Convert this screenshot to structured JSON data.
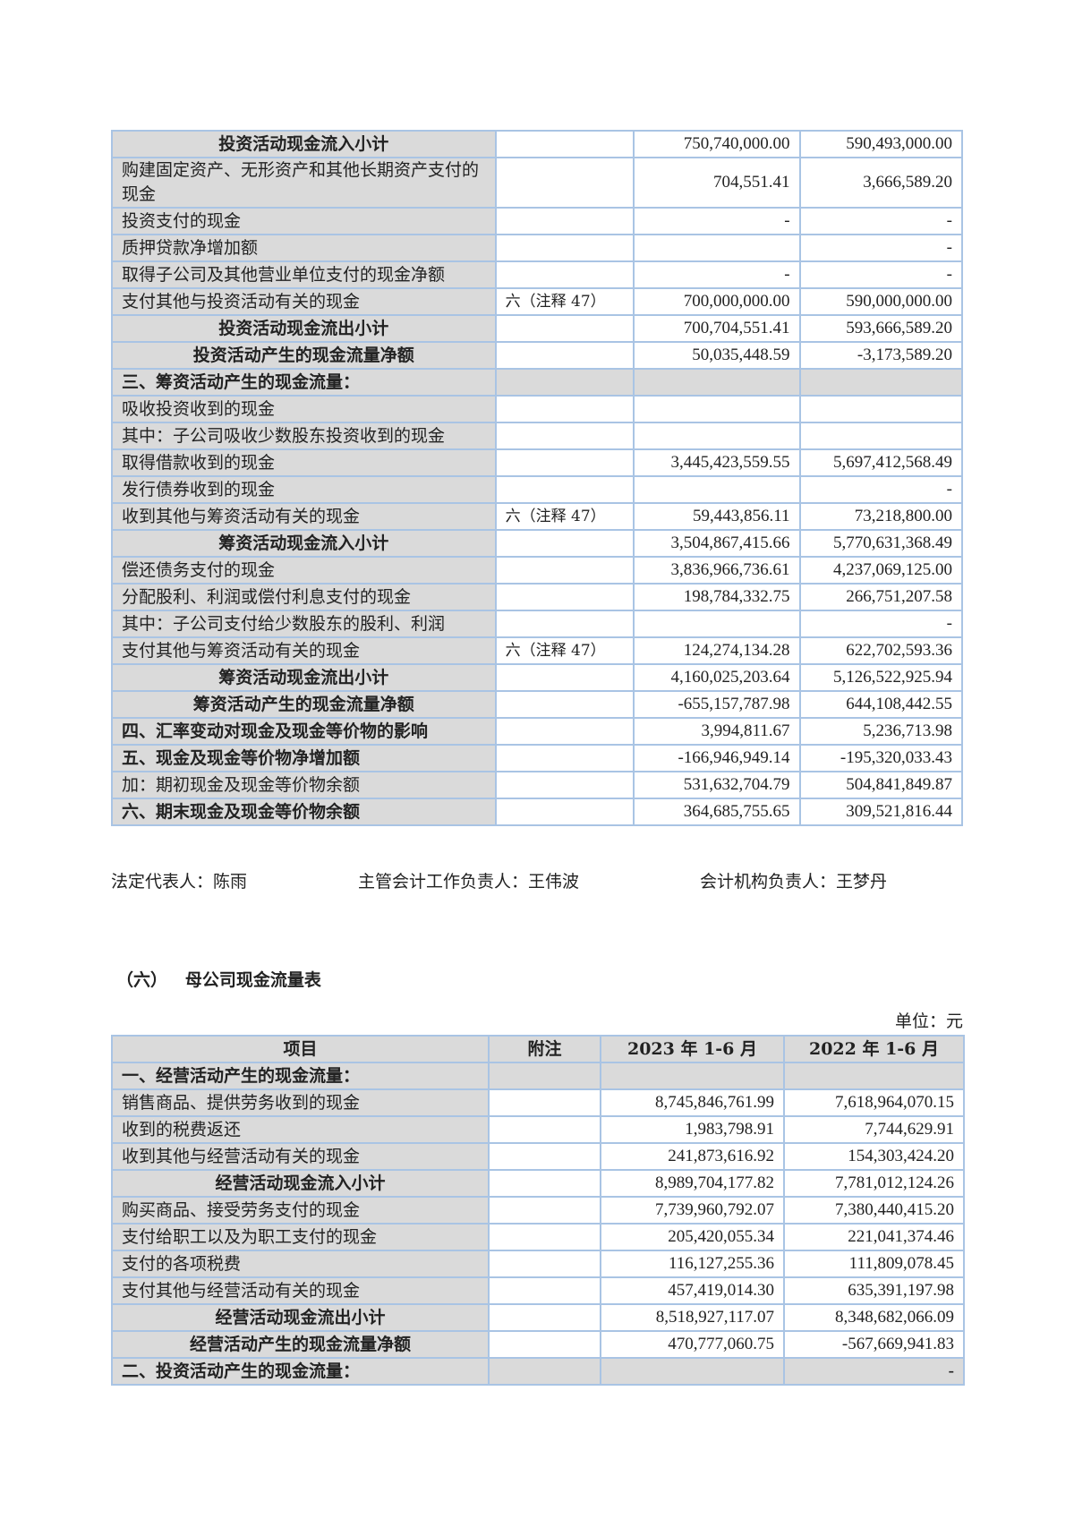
{
  "table1": {
    "rows": [
      {
        "label": "投资活动现金流入小计",
        "note": "",
        "v1": "750,740,000.00",
        "v2": "590,493,000.00",
        "type": "subtotal"
      },
      {
        "label": "购建固定资产、无形资产和其他长期资产支付的现金",
        "note": "",
        "v1": "704,551.41",
        "v2": "3,666,589.20",
        "type": "normal"
      },
      {
        "label": "投资支付的现金",
        "note": "",
        "v1": "-",
        "v2": "-",
        "type": "normal"
      },
      {
        "label": "质押贷款净增加额",
        "note": "",
        "v1": "",
        "v2": "-",
        "type": "normal"
      },
      {
        "label": "取得子公司及其他营业单位支付的现金净额",
        "note": "",
        "v1": "-",
        "v2": "-",
        "type": "normal"
      },
      {
        "label": "支付其他与投资活动有关的现金",
        "note": "六（注释 47）",
        "v1": "700,000,000.00",
        "v2": "590,000,000.00",
        "type": "normal"
      },
      {
        "label": "投资活动现金流出小计",
        "note": "",
        "v1": "700,704,551.41",
        "v2": "593,666,589.20",
        "type": "subtotal"
      },
      {
        "label": "投资活动产生的现金流量净额",
        "note": "",
        "v1": "50,035,448.59",
        "v2": "-3,173,589.20",
        "type": "subtotal"
      },
      {
        "label": "三、筹资活动产生的现金流量：",
        "note": "",
        "v1": "",
        "v2": "",
        "type": "section"
      },
      {
        "label": "吸收投资收到的现金",
        "note": "",
        "v1": "",
        "v2": "",
        "type": "normal"
      },
      {
        "label": "其中：子公司吸收少数股东投资收到的现金",
        "note": "",
        "v1": "",
        "v2": "",
        "type": "normal"
      },
      {
        "label": "取得借款收到的现金",
        "note": "",
        "v1": "3,445,423,559.55",
        "v2": "5,697,412,568.49",
        "type": "normal"
      },
      {
        "label": "发行债券收到的现金",
        "note": "",
        "v1": "",
        "v2": "-",
        "type": "normal"
      },
      {
        "label": "收到其他与筹资活动有关的现金",
        "note": "六（注释 47）",
        "v1": "59,443,856.11",
        "v2": "73,218,800.00",
        "type": "normal"
      },
      {
        "label": "筹资活动现金流入小计",
        "note": "",
        "v1": "3,504,867,415.66",
        "v2": "5,770,631,368.49",
        "type": "subtotal"
      },
      {
        "label": "偿还债务支付的现金",
        "note": "",
        "v1": "3,836,966,736.61",
        "v2": "4,237,069,125.00",
        "type": "normal"
      },
      {
        "label": "分配股利、利润或偿付利息支付的现金",
        "note": "",
        "v1": "198,784,332.75",
        "v2": "266,751,207.58",
        "type": "normal"
      },
      {
        "label": "其中：子公司支付给少数股东的股利、利润",
        "note": "",
        "v1": "",
        "v2": "-",
        "type": "normal"
      },
      {
        "label": "支付其他与筹资活动有关的现金",
        "note": "六（注释 47）",
        "v1": "124,274,134.28",
        "v2": "622,702,593.36",
        "type": "normal"
      },
      {
        "label": "筹资活动现金流出小计",
        "note": "",
        "v1": "4,160,025,203.64",
        "v2": "5,126,522,925.94",
        "type": "subtotal"
      },
      {
        "label": "筹资活动产生的现金流量净额",
        "note": "",
        "v1": "-655,157,787.98",
        "v2": "644,108,442.55",
        "type": "subtotal"
      },
      {
        "label": "四、汇率变动对现金及现金等价物的影响",
        "note": "",
        "v1": "3,994,811.67",
        "v2": "5,236,713.98",
        "type": "bold"
      },
      {
        "label": "五、现金及现金等价物净增加额",
        "note": "",
        "v1": "-166,946,949.14",
        "v2": "-195,320,033.43",
        "type": "bold"
      },
      {
        "label": "加：期初现金及现金等价物余额",
        "note": "",
        "v1": "531,632,704.79",
        "v2": "504,841,849.87",
        "type": "normal"
      },
      {
        "label": "六、期末现金及现金等价物余额",
        "note": "",
        "v1": "364,685,755.65",
        "v2": "309,521,816.44",
        "type": "bold"
      }
    ]
  },
  "signatures": {
    "legal_rep": "法定代表人：陈雨",
    "accounting_head": "主管会计工作负责人：王伟波",
    "accounting_org_head": "会计机构负责人：王梦丹"
  },
  "section_title": "（六）   母公司现金流量表",
  "unit": "单位：元",
  "table2": {
    "headers": [
      "项目",
      "附注",
      "2023 年 1-6 月",
      "2022 年 1-6 月"
    ],
    "rows": [
      {
        "label": "一、经营活动产生的现金流量：",
        "note": "",
        "v1": "",
        "v2": "",
        "type": "section"
      },
      {
        "label": "销售商品、提供劳务收到的现金",
        "note": "",
        "v1": "8,745,846,761.99",
        "v2": "7,618,964,070.15",
        "type": "normal"
      },
      {
        "label": "收到的税费返还",
        "note": "",
        "v1": "1,983,798.91",
        "v2": "7,744,629.91",
        "type": "normal"
      },
      {
        "label": "收到其他与经营活动有关的现金",
        "note": "",
        "v1": "241,873,616.92",
        "v2": "154,303,424.20",
        "type": "normal"
      },
      {
        "label": "经营活动现金流入小计",
        "note": "",
        "v1": "8,989,704,177.82",
        "v2": "7,781,012,124.26",
        "type": "subtotal"
      },
      {
        "label": "购买商品、接受劳务支付的现金",
        "note": "",
        "v1": "7,739,960,792.07",
        "v2": "7,380,440,415.20",
        "type": "normal"
      },
      {
        "label": "支付给职工以及为职工支付的现金",
        "note": "",
        "v1": "205,420,055.34",
        "v2": "221,041,374.46",
        "type": "normal"
      },
      {
        "label": "支付的各项税费",
        "note": "",
        "v1": "116,127,255.36",
        "v2": "111,809,078.45",
        "type": "normal"
      },
      {
        "label": "支付其他与经营活动有关的现金",
        "note": "",
        "v1": "457,419,014.30",
        "v2": "635,391,197.98",
        "type": "normal"
      },
      {
        "label": "经营活动现金流出小计",
        "note": "",
        "v1": "8,518,927,117.07",
        "v2": "8,348,682,066.09",
        "type": "subtotal"
      },
      {
        "label": "经营活动产生的现金流量净额",
        "note": "",
        "v1": "470,777,060.75",
        "v2": "-567,669,941.83",
        "type": "subtotal"
      },
      {
        "label": "二、投资活动产生的现金流量：",
        "note": "",
        "v1": "",
        "v2": "-",
        "type": "section"
      }
    ]
  }
}
